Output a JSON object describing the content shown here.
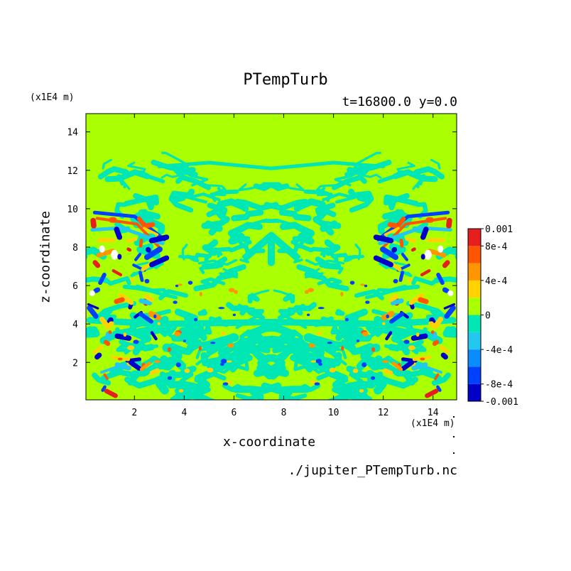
{
  "chart_data": {
    "type": "heatmap",
    "title": "PTempTurb",
    "subtitle": "t=16800.0 y=0.0",
    "xlabel": "x-coordinate",
    "ylabel": "z-coordinate",
    "x_unit": "(x1E4 m)",
    "y_unit": "(x1E4 m)",
    "source_label": "./jupiter_PTempTurb.nc",
    "xlim": [
      0.05,
      14.95
    ],
    "ylim": [
      0.05,
      14.95
    ],
    "x_ticks": [
      2,
      4,
      6,
      8,
      10,
      12,
      14
    ],
    "y_ticks": [
      2,
      4,
      6,
      8,
      10,
      12,
      14
    ],
    "colorbar": {
      "levels": [
        -0.001,
        -0.0008,
        -0.0006,
        -0.0004,
        -0.0002,
        0,
        0.0002,
        0.0004,
        0.0006,
        0.0008,
        0.001
      ],
      "colors": [
        "#0000c8",
        "#0040ff",
        "#0a8cff",
        "#22c8f0",
        "#00e6b4",
        "#aaff00",
        "#ffd200",
        "#ff9600",
        "#ff5500",
        "#e61e1e"
      ],
      "labels": [
        "0.001",
        "8e-4",
        "4e-4",
        "0",
        "-4e-4",
        "-8e-4",
        "-0.001"
      ],
      "label_values": [
        0.001,
        0.0008,
        0.0004,
        0,
        -0.0004,
        -0.0008,
        -0.001
      ],
      "above_color": "#ff5a5a",
      "below_color": "#0000a0"
    },
    "background_value_color": "#aaff00",
    "notable_regions": [
      {
        "description": "near-zero field dominates above z=12",
        "value": 0
      },
      {
        "description": "strong positive and negative anomalies along side walls between z=5 and z=10"
      }
    ]
  }
}
